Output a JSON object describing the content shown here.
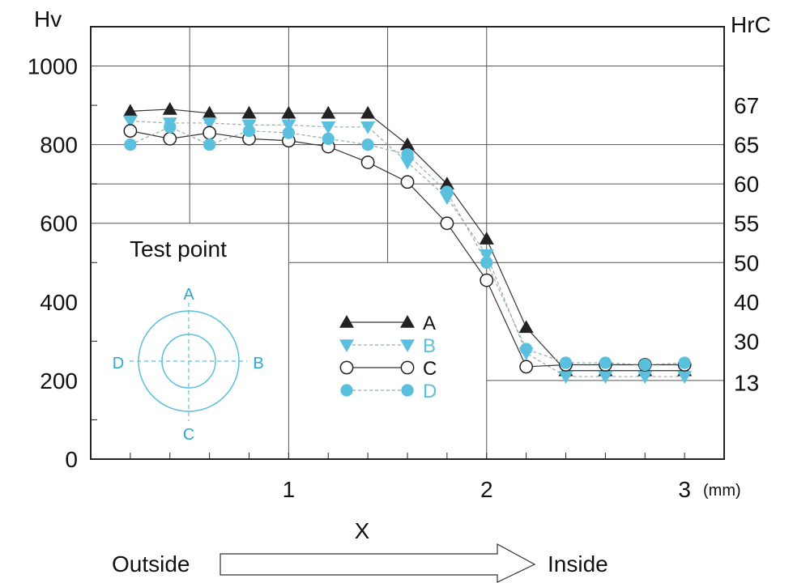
{
  "chart_data": {
    "type": "line",
    "left_axis_label": "Hv",
    "right_axis_label": "HrC",
    "x_label": "X",
    "x_unit": "(mm)",
    "x_ticks": [
      "1",
      "2",
      "3"
    ],
    "y_ticks": [
      "0",
      "200",
      "400",
      "600",
      "800",
      "1000"
    ],
    "right_ticks": [
      {
        "label": "67",
        "hv": 900
      },
      {
        "label": "65",
        "hv": 800
      },
      {
        "label": "60",
        "hv": 700
      },
      {
        "label": "55",
        "hv": 600
      },
      {
        "label": "50",
        "hv": 500
      },
      {
        "label": "40",
        "hv": 400
      },
      {
        "label": "30",
        "hv": 300
      },
      {
        "label": "13",
        "hv": 195
      }
    ],
    "xlim": [
      0,
      3.2
    ],
    "ylim": [
      0,
      1100
    ],
    "x": [
      0.2,
      0.4,
      0.6,
      0.8,
      1.0,
      1.2,
      1.4,
      1.6,
      1.8,
      2.0,
      2.2,
      2.4,
      2.6,
      2.8,
      3.0
    ],
    "series": [
      {
        "name": "A",
        "marker": "triangle-up",
        "color": "#222222",
        "line_style": "solid",
        "values": [
          885,
          890,
          880,
          880,
          880,
          880,
          880,
          800,
          700,
          560,
          335,
          225,
          225,
          225,
          225
        ]
      },
      {
        "name": "B",
        "marker": "triangle-down",
        "color": "#5bc0de",
        "line_style": "dashed",
        "values": [
          860,
          855,
          855,
          850,
          850,
          845,
          845,
          755,
          665,
          520,
          270,
          210,
          210,
          210,
          210
        ]
      },
      {
        "name": "C",
        "marker": "circle-open",
        "color": "#222222",
        "line_style": "solid",
        "values": [
          835,
          815,
          830,
          815,
          810,
          795,
          755,
          705,
          600,
          455,
          235,
          240,
          240,
          240,
          240
        ]
      },
      {
        "name": "D",
        "marker": "circle-filled",
        "color": "#5bc0de",
        "line_style": "dashed",
        "values": [
          800,
          845,
          800,
          835,
          830,
          815,
          800,
          775,
          680,
          500,
          280,
          245,
          245,
          240,
          245
        ]
      }
    ],
    "legend_position": "center"
  },
  "inset": {
    "title": "Test point",
    "points": [
      "A",
      "B",
      "C",
      "D"
    ]
  },
  "direction": {
    "from_label": "Outside",
    "to_label": "Inside"
  }
}
